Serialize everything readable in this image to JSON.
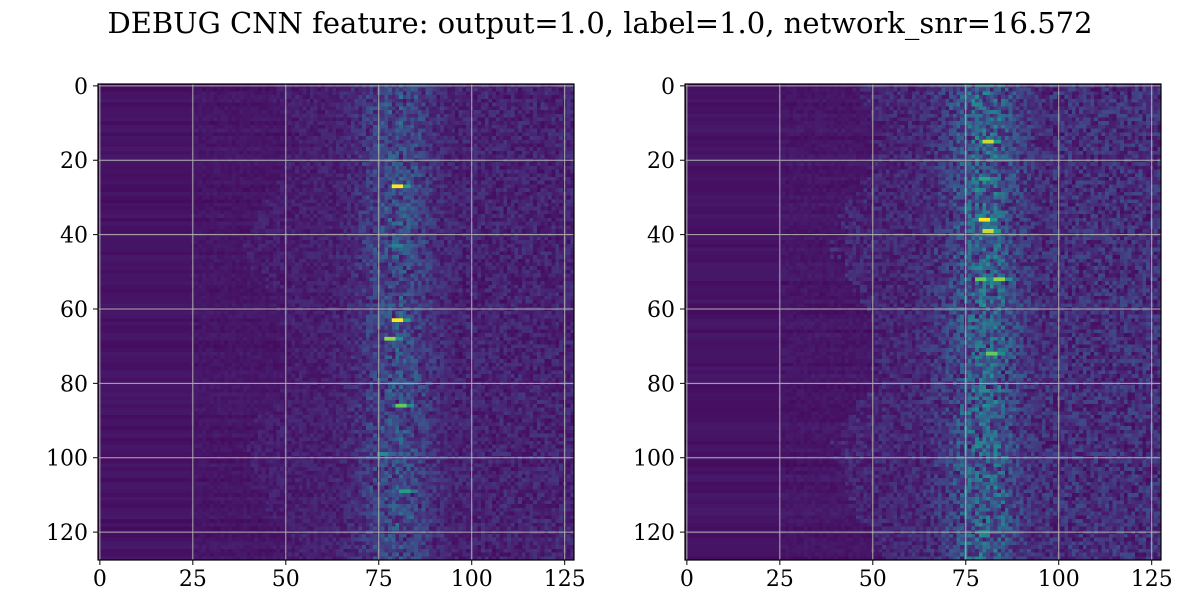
{
  "title": "DEBUG CNN feature: output=1.0, label=1.0, network_snr=16.572",
  "chart_data": [
    {
      "type": "heatmap",
      "colormap": "viridis",
      "grid": true,
      "xlim": [
        0,
        127
      ],
      "ylim": [
        127,
        0
      ],
      "rows": 128,
      "cols": 128,
      "xticks": [
        0,
        25,
        50,
        75,
        100,
        125
      ],
      "yticks": [
        0,
        20,
        40,
        60,
        80,
        100,
        120
      ],
      "hotspots": [
        {
          "x": 80,
          "y": 27,
          "v": 1.0
        },
        {
          "x": 80,
          "y": 63,
          "v": 1.0
        },
        {
          "x": 78,
          "y": 68,
          "v": 0.9
        },
        {
          "x": 81,
          "y": 86,
          "v": 0.85
        },
        {
          "x": 82,
          "y": 109,
          "v": 0.7
        },
        {
          "x": 80,
          "y": 43,
          "v": 0.55
        },
        {
          "x": 76,
          "y": 99,
          "v": 0.6
        }
      ]
    },
    {
      "type": "heatmap",
      "colormap": "viridis",
      "grid": true,
      "xlim": [
        0,
        127
      ],
      "ylim": [
        127,
        0
      ],
      "rows": 128,
      "cols": 128,
      "xticks": [
        0,
        25,
        50,
        75,
        100,
        125
      ],
      "yticks": [
        0,
        20,
        40,
        60,
        80,
        100,
        120
      ],
      "hotspots": [
        {
          "x": 81,
          "y": 15,
          "v": 0.95
        },
        {
          "x": 80,
          "y": 25,
          "v": 0.75
        },
        {
          "x": 80,
          "y": 36,
          "v": 1.0
        },
        {
          "x": 81,
          "y": 39,
          "v": 0.95
        },
        {
          "x": 79,
          "y": 52,
          "v": 0.85
        },
        {
          "x": 84,
          "y": 52,
          "v": 0.9
        },
        {
          "x": 82,
          "y": 72,
          "v": 0.85
        },
        {
          "x": 80,
          "y": 82,
          "v": 0.6
        },
        {
          "x": 79,
          "y": 96,
          "v": 0.55
        },
        {
          "x": 80,
          "y": 120,
          "v": 0.6
        }
      ]
    }
  ]
}
